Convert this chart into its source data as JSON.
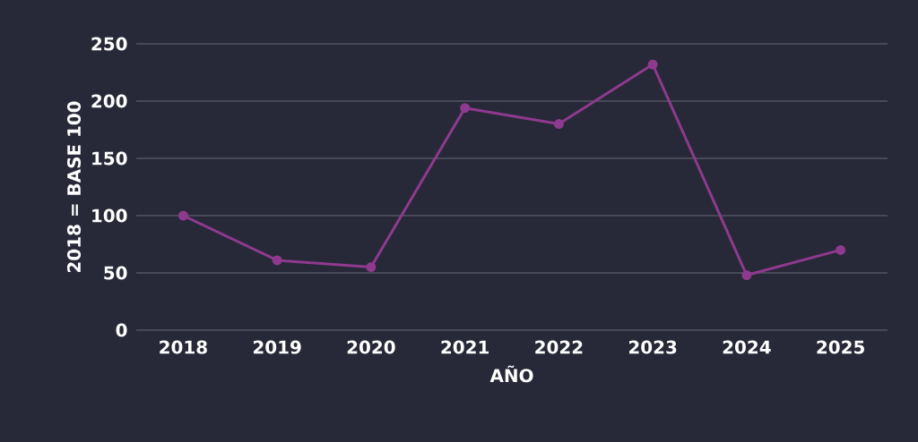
{
  "chart_data": {
    "type": "line",
    "xlabel": "AÑO",
    "ylabel": "2018 = BASE 100",
    "categories": [
      "2018",
      "2019",
      "2020",
      "2021",
      "2022",
      "2023",
      "2024",
      "2025"
    ],
    "series": [
      {
        "color": "#8e3a8e",
        "values": [
          100,
          61,
          55,
          194,
          180,
          232,
          48,
          70
        ]
      }
    ],
    "ylim": [
      0,
      250
    ],
    "yticks": [
      0,
      50,
      100,
      150,
      200,
      250
    ],
    "grid": "y",
    "marker": "circle",
    "line_style": "solid"
  }
}
